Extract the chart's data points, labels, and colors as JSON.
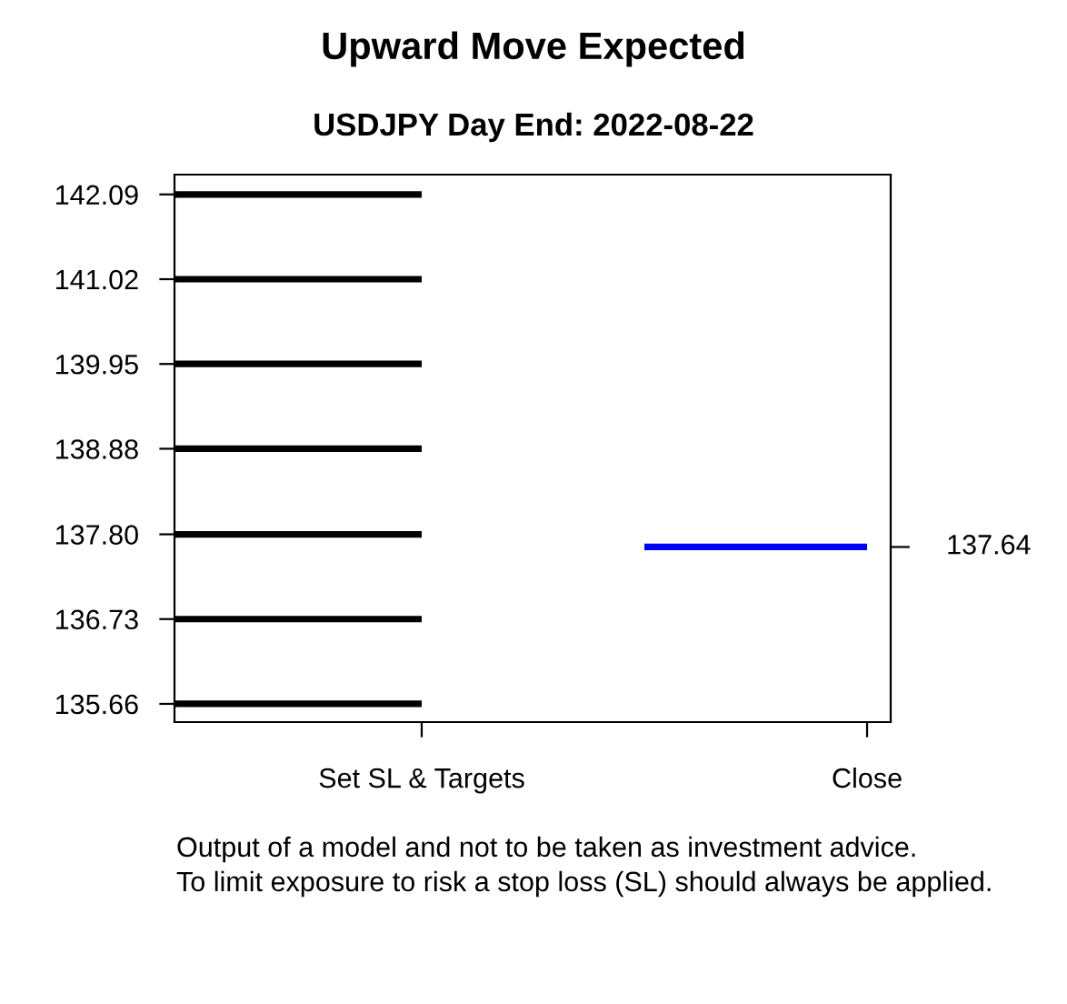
{
  "chart_data": {
    "type": "line",
    "title": "Upward Move Expected",
    "subtitle": "USDJPY Day End: 2022-08-22",
    "categories": [
      "Set SL & Targets",
      "Close"
    ],
    "ref_lines": [
      {
        "axis": "y",
        "value": 142.09,
        "color": "#000000"
      },
      {
        "axis": "y",
        "value": 141.02,
        "color": "#000000"
      },
      {
        "axis": "y",
        "value": 139.95,
        "color": "#000000"
      },
      {
        "axis": "y",
        "value": 138.88,
        "color": "#000000"
      },
      {
        "axis": "y",
        "value": 137.8,
        "color": "#000000"
      },
      {
        "axis": "y",
        "value": 136.73,
        "color": "#000000"
      },
      {
        "axis": "y",
        "value": 135.66,
        "color": "#000000"
      },
      {
        "axis": "y",
        "value": 137.64,
        "color": "#0000ff",
        "label": "137.64"
      }
    ],
    "ylim": [
      135.43,
      142.34
    ],
    "yticks": [
      135.66,
      136.73,
      {
        "value": 137.8,
        "label": "137.80"
      },
      138.88,
      139.95,
      141.02,
      142.09
    ],
    "grid": false,
    "annotations": [
      "Output of a model and not to be taken as investment advice.",
      "To limit exposure to risk a stop loss (SL) should always be applied."
    ]
  }
}
